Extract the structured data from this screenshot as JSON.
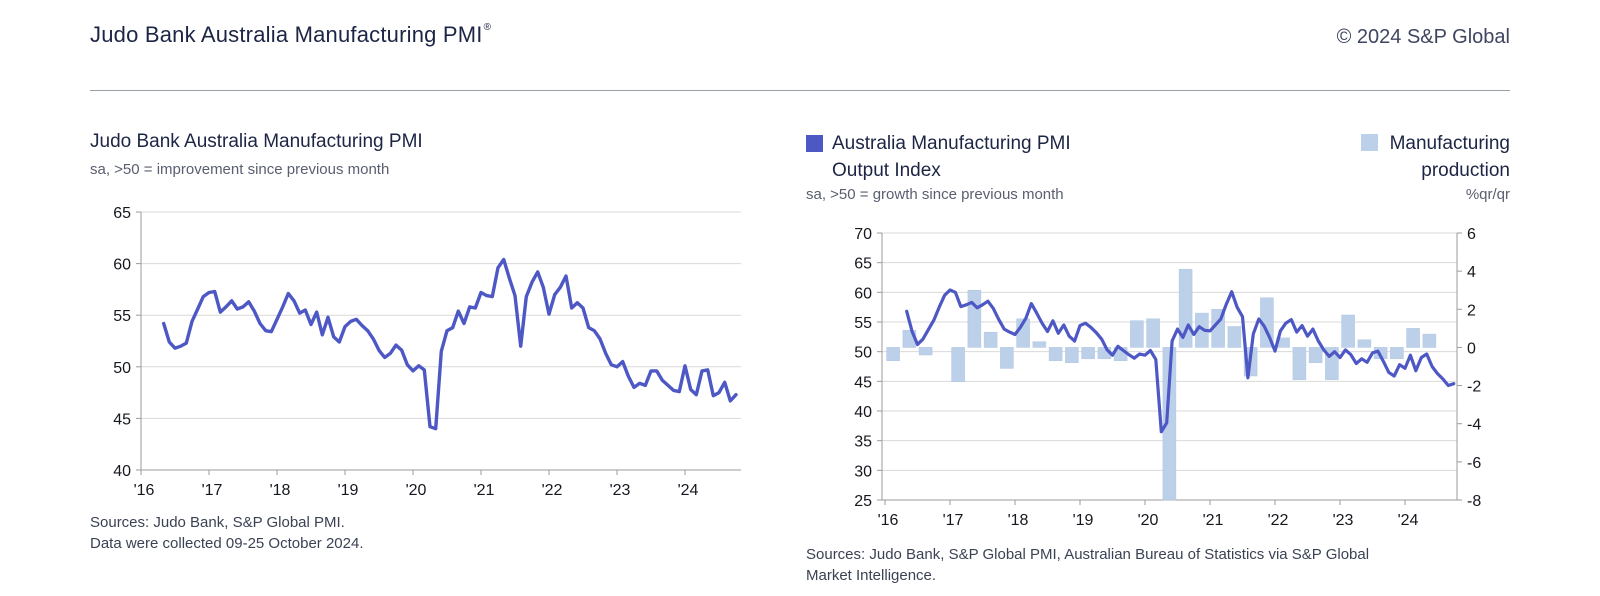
{
  "header": {
    "title": "Judo Bank Australia Manufacturing PMI",
    "registered_mark": "®",
    "copyright": "© 2024 S&P Global"
  },
  "colors": {
    "line": "#4d58c5",
    "bars": "#bdd0ea",
    "bar_border": "#aec5e2",
    "grid": "#d9d9d9",
    "axis": "#9b9b9b",
    "tick_text": "#15181f"
  },
  "left_chart": {
    "title": "Judo Bank Australia Manufacturing PMI",
    "subtitle": "sa, >50 = improvement since previous month",
    "sources": [
      "Sources: Judo Bank, S&P Global PMI.",
      "Data were collected 09-25 October 2024."
    ]
  },
  "right_chart": {
    "legend_line": {
      "line1": "Australia Manufacturing PMI",
      "line2": "Output Index"
    },
    "legend_bars": {
      "line1": "Manufacturing",
      "line2": "production",
      "unit": "%qr/qr"
    },
    "subtitle": "sa, >50 = growth since previous month",
    "sources": [
      "Sources: Judo Bank, S&P Global PMI, Australian Bureau of Statistics via S&P Global",
      "Market Intelligence."
    ]
  },
  "chart_data": [
    {
      "type": "line",
      "title": "Judo Bank Australia Manufacturing PMI",
      "subtitle": "sa, >50 = improvement since previous month",
      "ylim": [
        40,
        65
      ],
      "yticks": [
        40,
        45,
        50,
        55,
        60,
        65
      ],
      "x_tick_labels": [
        "'16",
        "'17",
        "'18",
        "'19",
        "'20",
        "'21",
        "'22",
        "'23",
        "'24"
      ],
      "grid": true,
      "series": [
        {
          "name": "Australia Manufacturing PMI (sa)",
          "start": "2016-05",
          "end": "2024-10",
          "freq": "monthly",
          "color": "#4d58c5",
          "values": [
            54.2,
            52.4,
            51.8,
            52.0,
            52.3,
            54.4,
            55.6,
            56.8,
            57.2,
            57.3,
            55.3,
            55.8,
            56.4,
            55.6,
            55.8,
            56.3,
            55.4,
            54.2,
            53.5,
            53.4,
            54.6,
            55.8,
            57.1,
            56.4,
            55.2,
            55.5,
            54.1,
            55.3,
            53.1,
            54.8,
            52.9,
            52.4,
            53.9,
            54.4,
            54.6,
            54.0,
            53.5,
            52.7,
            51.6,
            50.9,
            51.3,
            52.1,
            51.6,
            50.2,
            49.6,
            50.1,
            49.7,
            44.2,
            44.0,
            51.5,
            53.5,
            53.8,
            55.4,
            54.2,
            55.8,
            55.7,
            57.2,
            56.9,
            56.8,
            59.6,
            60.4,
            58.6,
            56.9,
            52.0,
            56.8,
            58.2,
            59.2,
            57.7,
            55.1,
            57.0,
            57.7,
            58.8,
            55.7,
            56.2,
            55.7,
            53.8,
            53.5,
            52.7,
            51.3,
            50.2,
            50.0,
            50.5,
            49.1,
            48.0,
            48.4,
            48.2,
            49.6,
            49.6,
            48.7,
            48.2,
            47.7,
            47.6,
            50.1,
            47.8,
            47.3,
            49.6,
            49.7,
            47.2,
            47.5,
            48.5,
            46.7,
            47.3
          ]
        }
      ]
    },
    {
      "type": "line+bar",
      "title": "Australia Manufacturing PMI Output Index vs Manufacturing production",
      "subtitle": "sa, >50 = growth since previous month",
      "left_ylim": [
        25,
        70
      ],
      "left_yticks": [
        25,
        30,
        35,
        40,
        45,
        50,
        55,
        60,
        65,
        70
      ],
      "right_ylim": [
        -8,
        6
      ],
      "right_yticks": [
        -8,
        -6,
        -4,
        -2,
        0,
        2,
        4,
        6
      ],
      "right_unit": "%qr/qr",
      "x_tick_labels": [
        "'16",
        "'17",
        "'18",
        "'19",
        "'20",
        "'21",
        "'22",
        "'23",
        "'24"
      ],
      "grid": true,
      "line": {
        "name": "Australia Manufacturing PMI Output Index",
        "axis": "left",
        "start": "2016-05",
        "end": "2024-10",
        "freq": "monthly",
        "color": "#4d58c5",
        "values": [
          56.8,
          53.4,
          51.2,
          52.1,
          53.7,
          55.3,
          57.5,
          59.5,
          60.4,
          60.0,
          57.6,
          57.9,
          58.3,
          57.4,
          57.9,
          58.5,
          57.3,
          55.4,
          53.8,
          53.3,
          52.9,
          54.1,
          55.6,
          58.1,
          56.5,
          54.8,
          53.4,
          55.2,
          53.1,
          54.5,
          52.6,
          51.8,
          54.4,
          54.8,
          54.1,
          53.2,
          52.1,
          50.3,
          49.4,
          50.9,
          50.2,
          49.5,
          48.9,
          49.6,
          49.4,
          50.2,
          48.7,
          36.5,
          38.0,
          51.8,
          53.8,
          52.4,
          54.5,
          52.9,
          54.2,
          53.6,
          53.5,
          54.5,
          55.5,
          58.0,
          60.1,
          57.5,
          55.9,
          45.6,
          53.0,
          55.5,
          54.3,
          52.4,
          50.1,
          53.5,
          54.8,
          55.4,
          53.3,
          54.4,
          52.6,
          53.8,
          51.8,
          50.3,
          49.2,
          50.0,
          49.0,
          50.3,
          49.5,
          48.0,
          48.8,
          48.2,
          49.8,
          50.1,
          48.4,
          46.5,
          45.9,
          47.8,
          47.2,
          49.4,
          46.8,
          49.0,
          49.6,
          47.5,
          46.3,
          45.4,
          44.3,
          44.6
        ]
      },
      "bars": {
        "name": "Manufacturing production (%qr/qr)",
        "axis": "right",
        "start": "2016-Q1",
        "end": "2024-Q2",
        "freq": "quarterly",
        "color": "#bdd0ea",
        "values": [
          -0.7,
          0.9,
          -0.4,
          0.0,
          -1.8,
          3.0,
          0.8,
          -1.1,
          1.5,
          0.3,
          -0.7,
          -0.8,
          -0.6,
          -0.6,
          -0.7,
          1.4,
          1.5,
          -8.5,
          4.1,
          1.8,
          2.0,
          1.1,
          -1.5,
          2.6,
          0.5,
          -1.7,
          -0.8,
          -1.7,
          1.7,
          0.4,
          -0.6,
          -0.6,
          1.0,
          0.7
        ]
      }
    }
  ]
}
